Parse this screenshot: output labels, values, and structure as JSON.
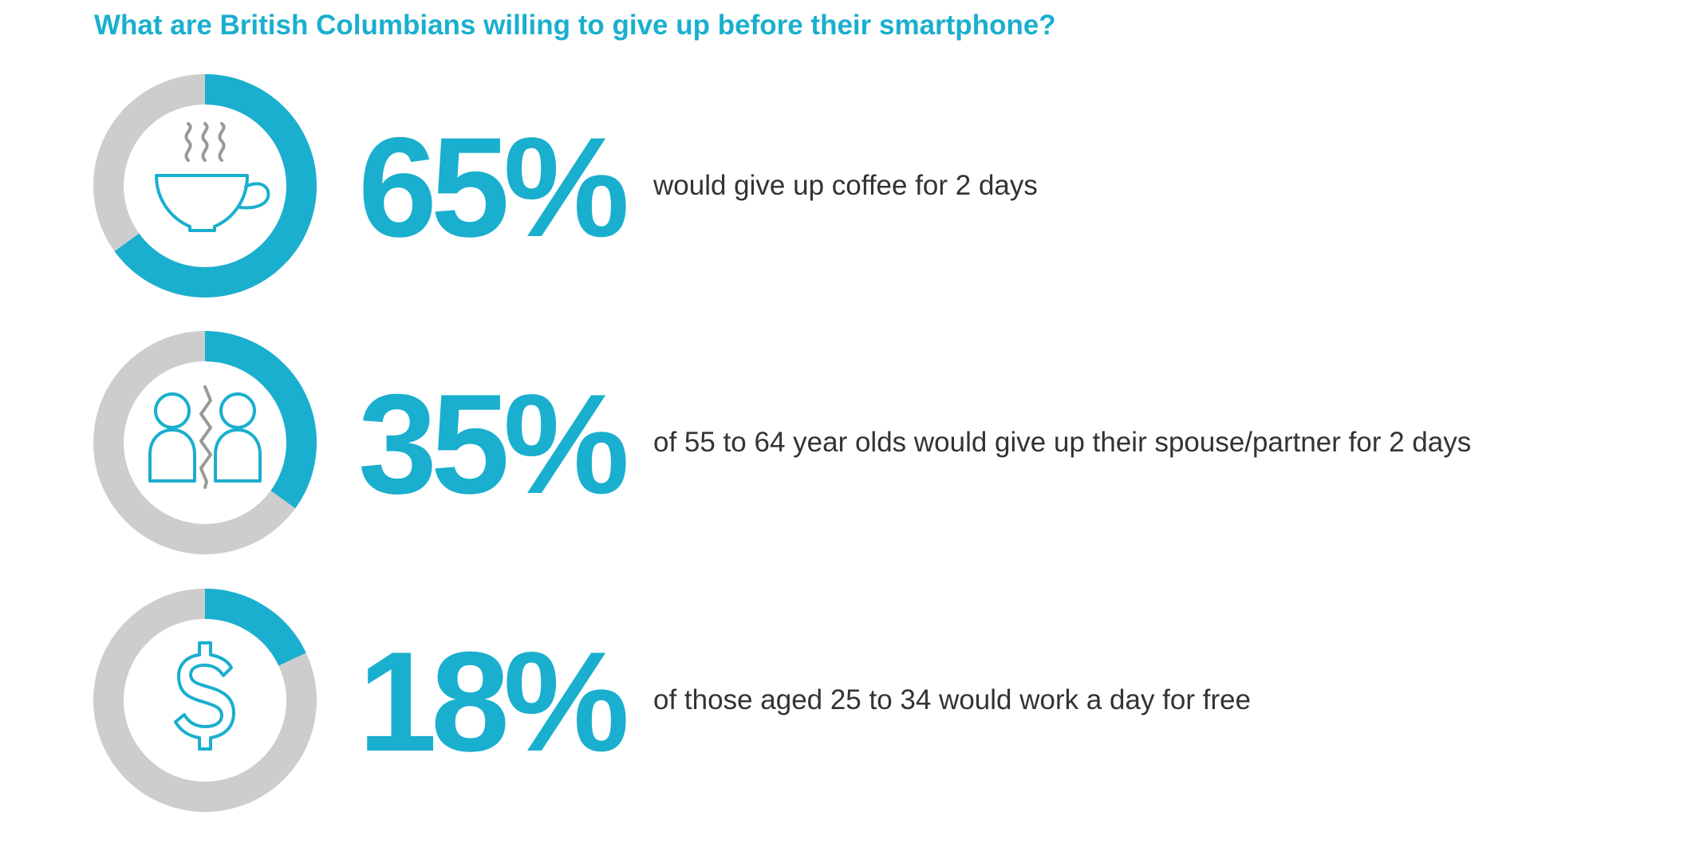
{
  "title": "What are British Columbians willing to give up before their smartphone?",
  "colors": {
    "accent": "#1AAFCE",
    "track": "#CDCDCD",
    "icon_gray": "#999999",
    "text": "#333333"
  },
  "chart_data": {
    "type": "donut",
    "title": "What are British Columbians willing to give up before their smartphone?",
    "items": [
      {
        "value": 65,
        "label": "65%",
        "caption": "would give up coffee for 2 days",
        "icon": "coffee-cup-icon"
      },
      {
        "value": 35,
        "label": "35%",
        "caption": "of 55 to 64 year olds would give up their spouse/partner for 2 days",
        "icon": "couple-split-icon"
      },
      {
        "value": 18,
        "label": "18%",
        "caption": "of those aged 25 to 34 would work a day for free",
        "icon": "dollar-sign-icon"
      }
    ]
  }
}
